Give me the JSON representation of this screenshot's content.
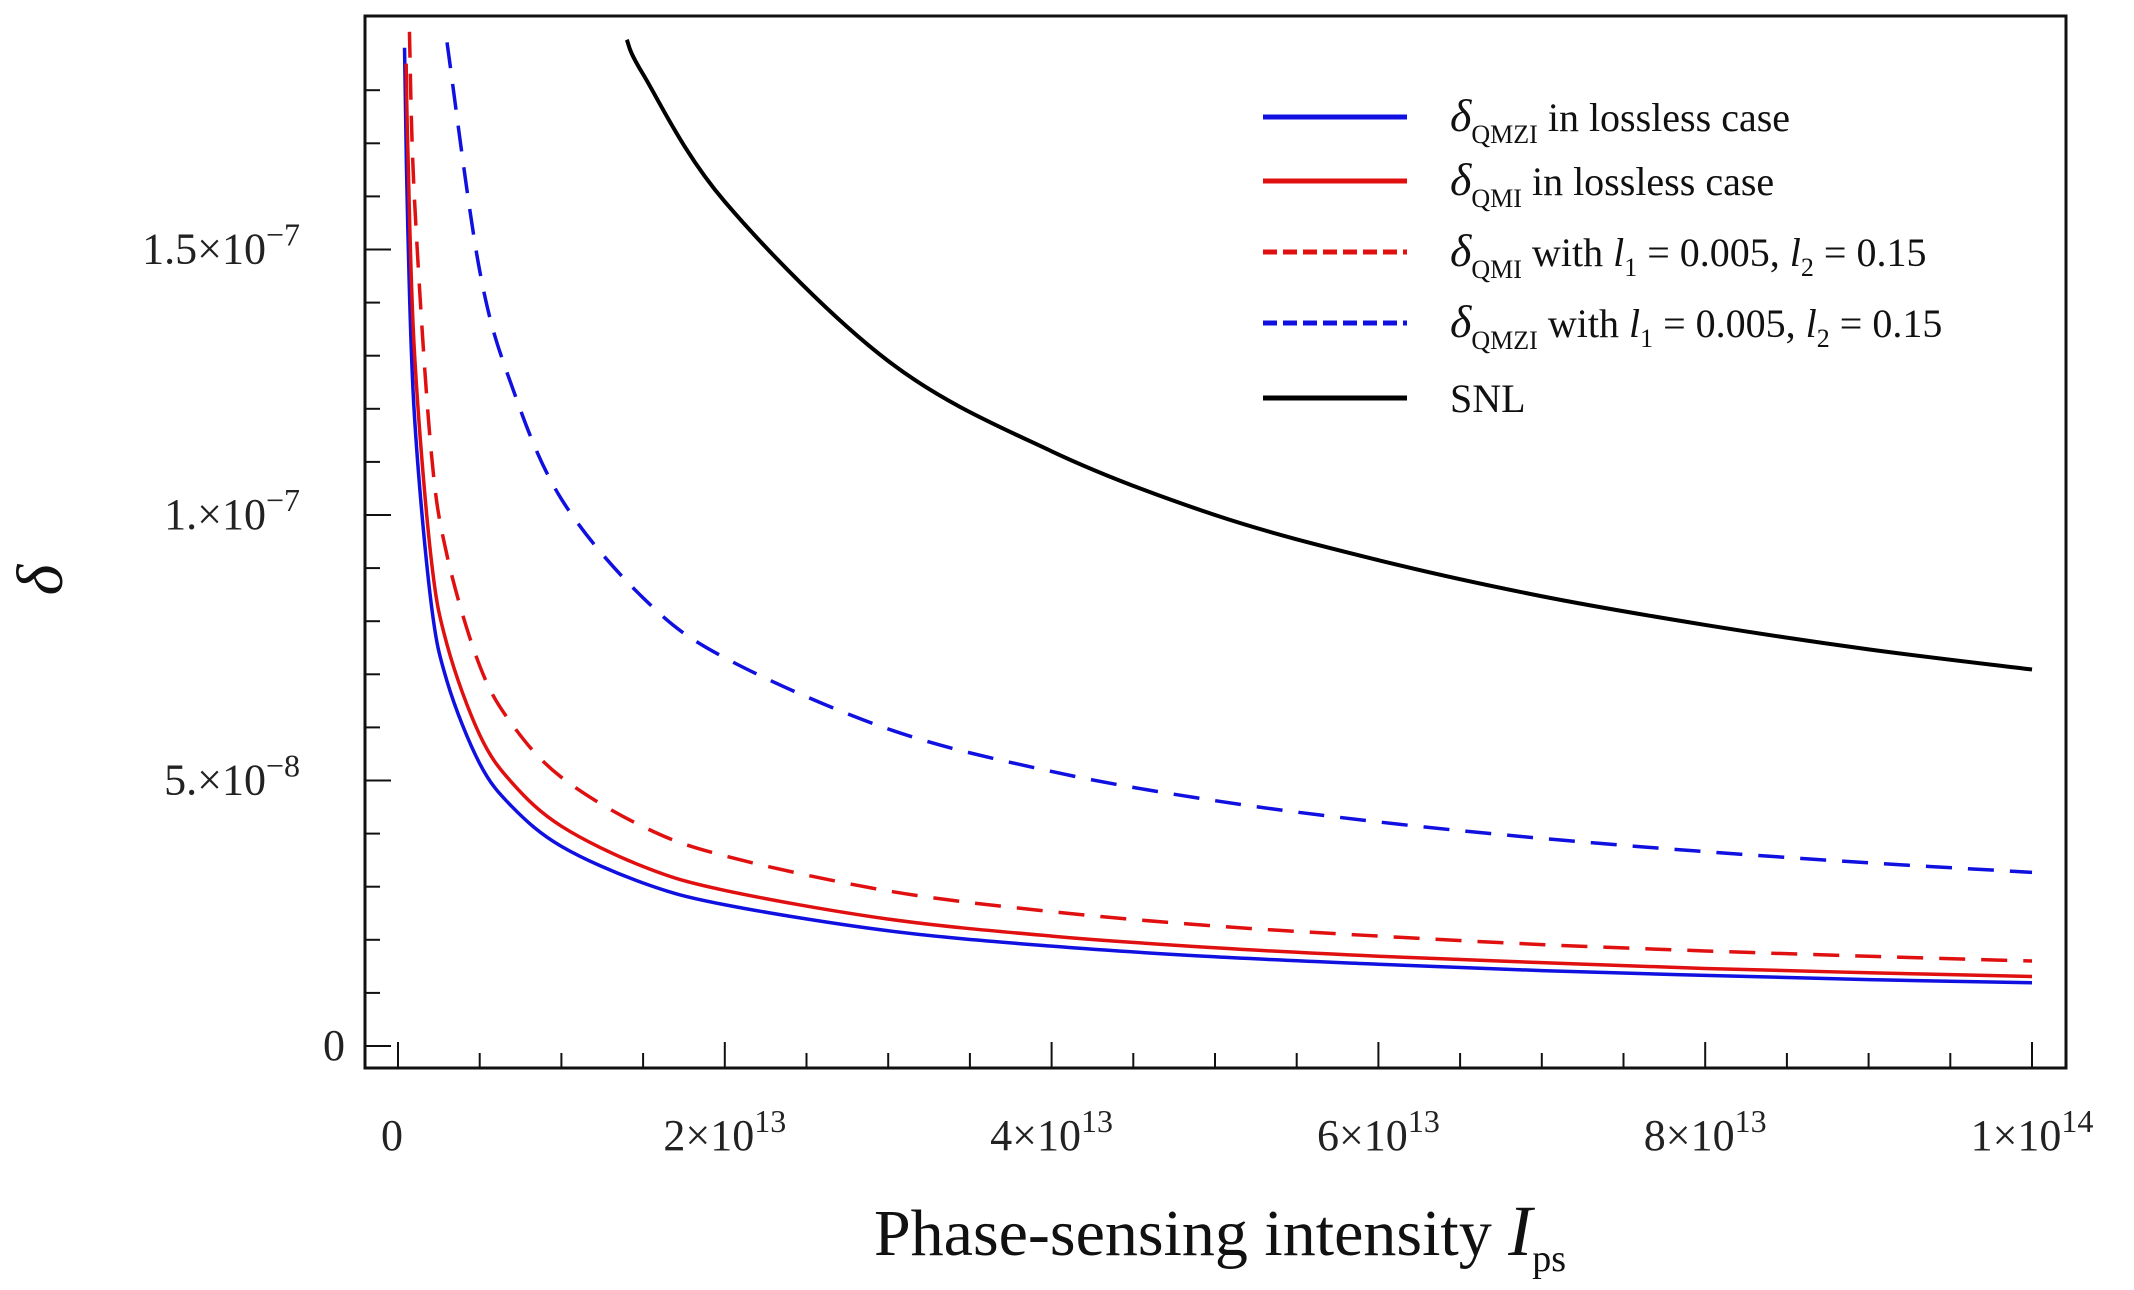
{
  "chart_data": {
    "type": "line",
    "title": "",
    "xlabel": {
      "text": "Phase-sensing intensity ",
      "symbol": "I",
      "sub": "ps"
    },
    "ylabel": "δ",
    "xlim": [
      -2000000000000.0,
      102100000000000.0
    ],
    "ylim": [
      -4e-09,
      1.95e-07
    ],
    "grid": false,
    "legend_position": "top-right",
    "x_ticks": [
      {
        "value": 0,
        "base": "0",
        "exp": ""
      },
      {
        "value": 20000000000000.0,
        "base": "2×10",
        "exp": "13"
      },
      {
        "value": 40000000000000.0,
        "base": "4×10",
        "exp": "13"
      },
      {
        "value": 60000000000000.0,
        "base": "6×10",
        "exp": "13"
      },
      {
        "value": 80000000000000.0,
        "base": "8×10",
        "exp": "13"
      },
      {
        "value": 100000000000000.0,
        "base": "1×10",
        "exp": "14"
      }
    ],
    "y_ticks": [
      {
        "value": 0,
        "base": "0",
        "exp": ""
      },
      {
        "value": 5e-08,
        "base": "5.×10",
        "exp": "−8"
      },
      {
        "value": 1e-07,
        "base": "1.×10",
        "exp": "−7"
      },
      {
        "value": 1.5e-07,
        "base": "1.5×10",
        "exp": "−7"
      }
    ],
    "series": [
      {
        "name": "δQMZI in lossless case",
        "label": {
          "sym": "δ",
          "sub": "QMZI",
          "text": " in lossless case"
        },
        "color": "#1010e0",
        "dashed": false,
        "x": [
          400000000000.0,
          600000000000.0,
          1000000000000.0,
          2000000000000.0,
          3000000000000.0,
          5000000000000.0,
          7000000000000.0,
          10000000000000.0,
          15000000000000.0,
          20000000000000.0,
          30000000000000.0,
          40000000000000.0,
          50000000000000.0,
          60000000000000.0,
          70000000000000.0,
          80000000000000.0,
          90000000000000.0,
          100000000000000.0
        ],
        "y": [
          1.88e-07,
          1.54e-07,
          1.19e-07,
          8.41e-08,
          6.87e-08,
          5.32e-08,
          4.5e-08,
          3.76e-08,
          3.07e-08,
          2.66e-08,
          2.17e-08,
          1.88e-08,
          1.68e-08,
          1.54e-08,
          1.42e-08,
          1.33e-08,
          1.25e-08,
          1.19e-08
        ]
      },
      {
        "name": "δQMI in lossless case",
        "label": {
          "sym": "δ",
          "sub": "QMI",
          "text": " in lossless case"
        },
        "color": "#e01010",
        "dashed": false,
        "x": [
          500000000000.0,
          600000000000.0,
          1000000000000.0,
          2000000000000.0,
          3000000000000.0,
          5000000000000.0,
          7000000000000.0,
          10000000000000.0,
          15000000000000.0,
          20000000000000.0,
          30000000000000.0,
          40000000000000.0,
          50000000000000.0,
          60000000000000.0,
          70000000000000.0,
          80000000000000.0,
          90000000000000.0,
          100000000000000.0
        ],
        "y": [
          1.85e-07,
          1.69e-07,
          1.31e-07,
          9.26e-08,
          7.56e-08,
          5.86e-08,
          4.95e-08,
          4.14e-08,
          3.38e-08,
          2.93e-08,
          2.39e-08,
          2.07e-08,
          1.85e-08,
          1.69e-08,
          1.57e-08,
          1.46e-08,
          1.38e-08,
          1.31e-08
        ]
      },
      {
        "name": "δQMI with l1 = 0.005, l2 = 0.15",
        "label": {
          "sym": "δ",
          "sub": "QMI",
          "text": " with ",
          "l1": "l",
          "l1sub": "1",
          "mid": " =  0.005, ",
          "l2": "l",
          "l2sub": "2",
          "end": " =  0.15"
        },
        "color": "#e01010",
        "dashed": true,
        "x": [
          700000000000.0,
          1000000000000.0,
          2000000000000.0,
          3000000000000.0,
          5000000000000.0,
          7000000000000.0,
          10000000000000.0,
          15000000000000.0,
          20000000000000.0,
          30000000000000.0,
          40000000000000.0,
          50000000000000.0,
          60000000000000.0,
          70000000000000.0,
          80000000000000.0,
          90000000000000.0,
          100000000000000.0
        ],
        "y": [
          1.91e-07,
          1.6e-07,
          1.13e-07,
          9.24e-08,
          7.16e-08,
          6.05e-08,
          5.06e-08,
          4.13e-08,
          3.58e-08,
          2.92e-08,
          2.53e-08,
          2.26e-08,
          2.07e-08,
          1.91e-08,
          1.79e-08,
          1.69e-08,
          1.6e-08
        ]
      },
      {
        "name": "δQMZI with l1 = 0.005, l2 = 0.15",
        "label": {
          "sym": "δ",
          "sub": "QMZI",
          "text": " with ",
          "l1": "l",
          "l1sub": "1",
          "mid": " =  0.005, ",
          "l2": "l",
          "l2sub": "2",
          "end": " =  0.15"
        },
        "color": "#1010e0",
        "dashed": true,
        "x": [
          3000000000000.0,
          5000000000000.0,
          7000000000000.0,
          10000000000000.0,
          15000000000000.0,
          20000000000000.0,
          30000000000000.0,
          40000000000000.0,
          50000000000000.0,
          60000000000000.0,
          70000000000000.0,
          80000000000000.0,
          90000000000000.0,
          100000000000000.0
        ],
        "y": [
          1.89e-07,
          1.46e-07,
          1.24e-07,
          1.03e-07,
          8.44e-08,
          7.31e-08,
          5.97e-08,
          5.17e-08,
          4.62e-08,
          4.22e-08,
          3.91e-08,
          3.66e-08,
          3.45e-08,
          3.27e-08
        ]
      },
      {
        "name": "SNL",
        "label": {
          "sym": "",
          "sub": "",
          "text": "  SNL"
        },
        "color": "#000000",
        "dashed": false,
        "x": [
          14000000000000.0,
          15000000000000.0,
          20000000000000.0,
          30000000000000.0,
          40000000000000.0,
          50000000000000.0,
          60000000000000.0,
          70000000000000.0,
          80000000000000.0,
          90000000000000.0,
          100000000000000.0
        ],
        "y": [
          1.895e-07,
          1.83e-07,
          1.59e-07,
          1.29e-07,
          1.12e-07,
          1e-07,
          9.15e-08,
          8.47e-08,
          7.93e-08,
          7.47e-08,
          7.09e-08
        ]
      }
    ]
  }
}
